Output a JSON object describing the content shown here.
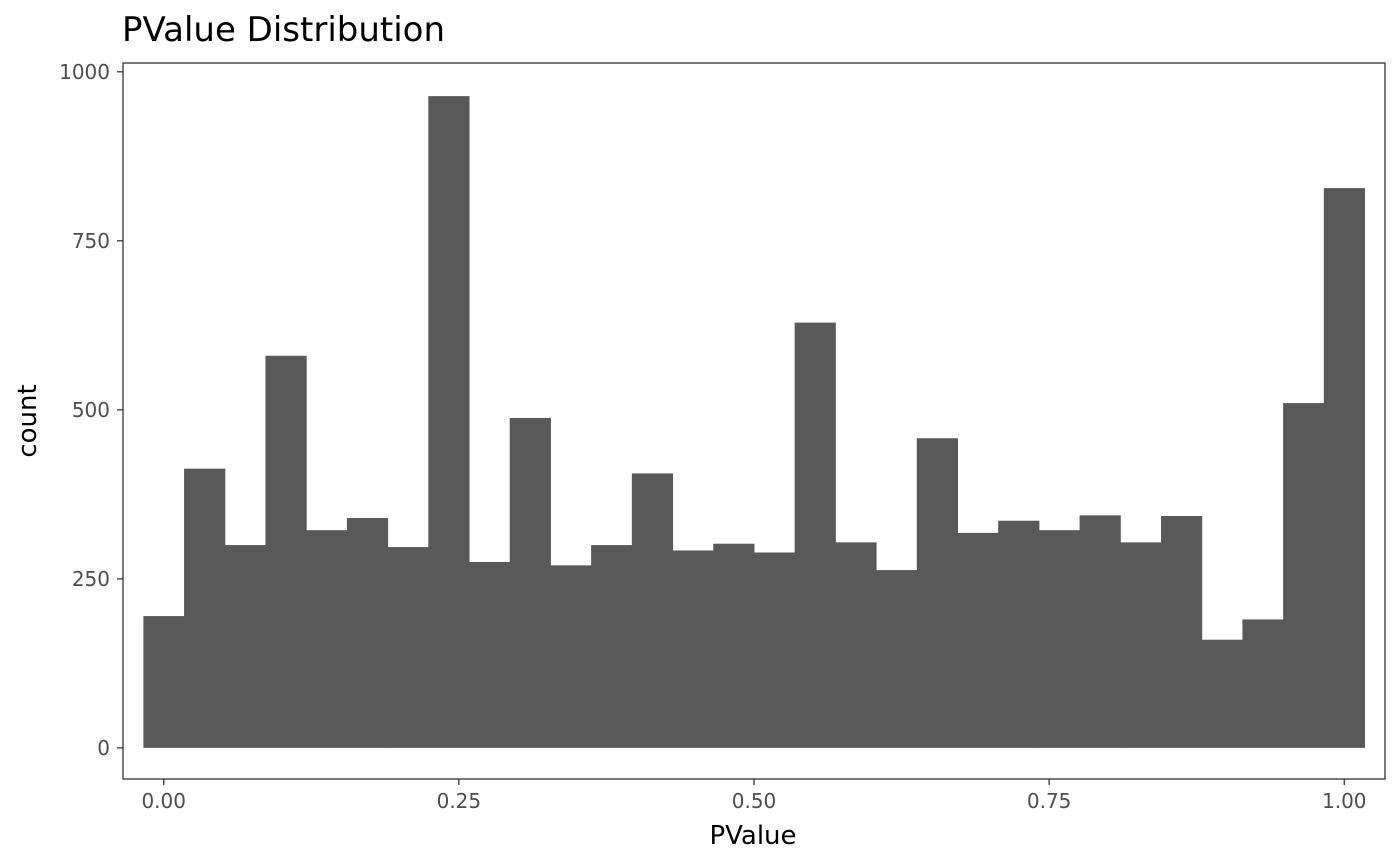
{
  "chart_data": {
    "type": "bar",
    "title": "PValue Distribution",
    "xlabel": "PValue",
    "ylabel": "count",
    "xlim": [
      -0.0345,
      1.0345
    ],
    "ylim": [
      -46,
      1013
    ],
    "x_ticks": [
      {
        "value": 0.0,
        "label": "0.00"
      },
      {
        "value": 0.25,
        "label": "0.25"
      },
      {
        "value": 0.5,
        "label": "0.50"
      },
      {
        "value": 0.75,
        "label": "0.75"
      },
      {
        "value": 1.0,
        "label": "1.00"
      }
    ],
    "y_ticks": [
      {
        "value": 0,
        "label": "0"
      },
      {
        "value": 250,
        "label": "250"
      },
      {
        "value": 500,
        "label": "500"
      },
      {
        "value": 750,
        "label": "750"
      },
      {
        "value": 1000,
        "label": "1000"
      }
    ],
    "bin_start": -0.01724,
    "bin_width": 0.03448,
    "values": [
      195,
      413,
      300,
      580,
      322,
      340,
      297,
      964,
      275,
      488,
      270,
      300,
      406,
      292,
      302,
      289,
      629,
      304,
      263,
      458,
      318,
      336,
      322,
      344,
      304,
      343,
      160,
      190,
      510,
      828
    ],
    "grid": false,
    "bar_color": "#595959"
  }
}
